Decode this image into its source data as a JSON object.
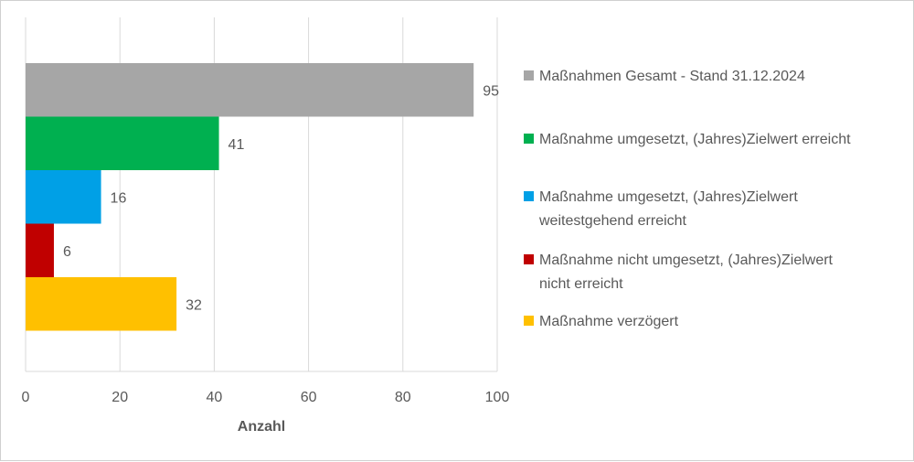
{
  "chart_data": {
    "type": "bar",
    "orientation": "horizontal",
    "categories": [
      "Maßnahmen Gesamt - Stand 31.12.2024",
      "Maßnahme umgesetzt, (Jahres)Zielwert erreicht",
      "Maßnahme umgesetzt, (Jahres)Zielwert weitestgehend erreicht",
      "Maßnahme nicht umgesetzt, (Jahres)Zielwert nicht erreicht",
      "Maßnahme verzögert"
    ],
    "values": [
      95,
      41,
      16,
      6,
      32
    ],
    "colors": [
      "#a6a6a6",
      "#00b050",
      "#00a0e6",
      "#c00000",
      "#ffc000"
    ],
    "legend": [
      {
        "lines": [
          "Maßnahmen Gesamt - Stand 31.12.2024"
        ],
        "color": "#a6a6a6"
      },
      {
        "lines": [
          "Maßnahme umgesetzt, (Jahres)Zielwert erreicht"
        ],
        "color": "#00b050"
      },
      {
        "lines": [
          "Maßnahme umgesetzt, (Jahres)Zielwert",
          "weitestgehend erreicht"
        ],
        "color": "#00a0e6"
      },
      {
        "lines": [
          "Maßnahme nicht umgesetzt, (Jahres)Zielwert",
          "nicht erreicht"
        ],
        "color": "#c00000"
      },
      {
        "lines": [
          "Maßnahme verzögert"
        ],
        "color": "#ffc000"
      }
    ],
    "xlabel": "Anzahl",
    "xlim": [
      0,
      100
    ],
    "xticks": [
      0,
      20,
      40,
      60,
      80,
      100
    ],
    "grid": "vertical",
    "legend_position": "right"
  }
}
